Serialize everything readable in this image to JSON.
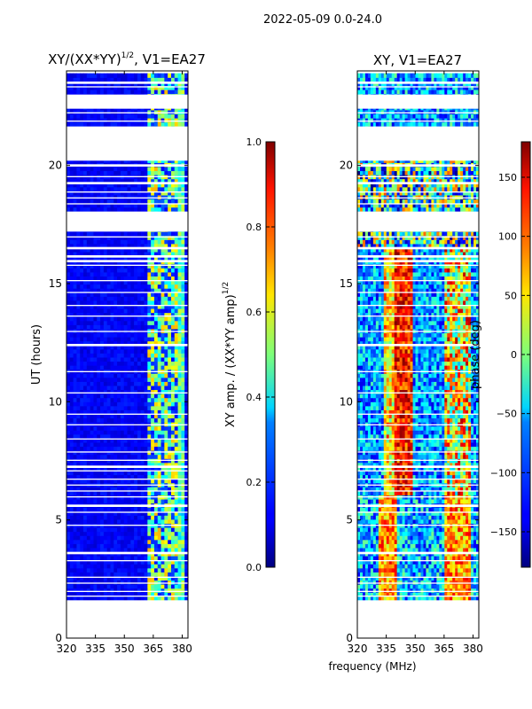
{
  "suptitle": "2022-05-09 0.0-24.0",
  "shared_xlabel": "frequency (MHz)",
  "chart_data": [
    {
      "type": "heatmap",
      "title_main": "XY/(XX*YY)",
      "title_sup": "1/2",
      "title_tail": ", V1=EA27",
      "xlabel": "",
      "ylabel": "UT (hours)",
      "xlim": [
        320,
        383
      ],
      "ylim": [
        0,
        24
      ],
      "xticks": [
        320,
        335,
        350,
        365,
        380
      ],
      "xtick_labels": [
        "320",
        "335",
        "350",
        "365",
        "380"
      ],
      "yticks": [
        0,
        5,
        10,
        15,
        20
      ],
      "ytick_labels": [
        "0",
        "5",
        "10",
        "15",
        "20"
      ],
      "data_range_hours": [
        1.6,
        23.9
      ],
      "colorbar": {
        "label_main": "XY amp. / (XX*YY amp)",
        "label_sup": "1/2",
        "range": [
          0.0,
          1.0
        ],
        "ticks": [
          0.0,
          0.2,
          0.4,
          0.6,
          0.8,
          1.0
        ],
        "tick_labels": [
          "0.0",
          "0.2",
          "0.4",
          "0.6",
          "0.8",
          "1.0"
        ],
        "colormap": "jet"
      }
    },
    {
      "type": "heatmap",
      "title_main": "XY, V1=EA27",
      "xlabel": "frequency (MHz)",
      "ylabel": "",
      "xlim": [
        320,
        383
      ],
      "ylim": [
        0,
        24
      ],
      "xticks": [
        320,
        335,
        350,
        365,
        380
      ],
      "xtick_labels": [
        "320",
        "335",
        "350",
        "365",
        "380"
      ],
      "yticks": [
        0,
        5,
        10,
        15,
        20
      ],
      "ytick_labels": [
        "0",
        "5",
        "10",
        "15",
        "20"
      ],
      "data_range_hours": [
        1.6,
        23.9
      ],
      "colorbar": {
        "label_main": "phase (deg)",
        "range": [
          -180,
          180
        ],
        "ticks": [
          -150,
          -100,
          -50,
          0,
          50,
          100,
          150
        ],
        "tick_labels": [
          "−150",
          "−100",
          "−50",
          "0",
          "50",
          "100",
          "150"
        ],
        "colormap": "jet"
      }
    }
  ],
  "data_gaps_hours": [
    [
      0,
      1.6
    ],
    [
      1.75,
      1.8
    ],
    [
      1.95,
      2.0
    ],
    [
      2.3,
      2.35
    ],
    [
      2.55,
      2.6
    ],
    [
      3.25,
      3.3
    ],
    [
      3.55,
      3.65
    ],
    [
      4.75,
      4.8
    ],
    [
      5.3,
      5.35
    ],
    [
      5.55,
      5.65
    ],
    [
      5.95,
      6.0
    ],
    [
      6.2,
      6.25
    ],
    [
      6.45,
      6.5
    ],
    [
      6.7,
      6.75
    ],
    [
      7.05,
      7.1
    ],
    [
      7.2,
      7.3
    ],
    [
      7.5,
      7.55
    ],
    [
      7.85,
      7.9
    ],
    [
      8.4,
      8.45
    ],
    [
      9.0,
      9.05
    ],
    [
      9.45,
      9.5
    ],
    [
      10.35,
      10.4
    ],
    [
      11.25,
      11.3
    ],
    [
      12.35,
      12.45
    ],
    [
      12.95,
      13.0
    ],
    [
      13.6,
      13.65
    ],
    [
      14.05,
      14.1
    ],
    [
      14.6,
      14.65
    ],
    [
      15.1,
      15.15
    ],
    [
      15.75,
      15.8
    ],
    [
      15.9,
      16.0
    ],
    [
      16.1,
      16.2
    ],
    [
      16.45,
      16.55
    ],
    [
      16.95,
      17.0
    ],
    [
      17.2,
      18.05
    ],
    [
      18.35,
      18.4
    ],
    [
      18.6,
      18.65
    ],
    [
      18.85,
      18.9
    ],
    [
      19.2,
      19.3
    ],
    [
      19.5,
      19.55
    ],
    [
      19.95,
      20.05
    ],
    [
      20.2,
      21.65
    ],
    [
      21.85,
      21.9
    ],
    [
      22.2,
      22.25
    ],
    [
      22.4,
      23.0
    ],
    [
      23.3,
      23.35
    ],
    [
      23.45,
      23.55
    ]
  ]
}
